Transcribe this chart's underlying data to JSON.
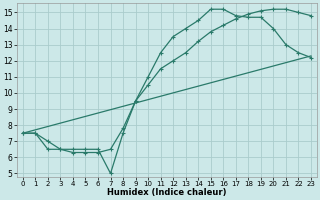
{
  "xlabel": "Humidex (Indice chaleur)",
  "background_color": "#cce8e8",
  "grid_color": "#aacccc",
  "line_color": "#2a7a6a",
  "xlim": [
    -0.5,
    23.5
  ],
  "ylim": [
    4.8,
    15.6
  ],
  "xticks": [
    0,
    1,
    2,
    3,
    4,
    5,
    6,
    7,
    8,
    9,
    10,
    11,
    12,
    13,
    14,
    15,
    16,
    17,
    18,
    19,
    20,
    21,
    22,
    23
  ],
  "yticks": [
    5,
    6,
    7,
    8,
    9,
    10,
    11,
    12,
    13,
    14,
    15
  ],
  "line1_x": [
    0,
    1,
    2,
    3,
    4,
    5,
    6,
    7,
    8,
    9,
    10,
    11,
    12,
    13,
    14,
    15,
    16,
    17,
    18,
    19,
    20,
    21,
    22,
    23
  ],
  "line1_y": [
    7.5,
    7.5,
    6.5,
    6.5,
    6.5,
    6.5,
    6.5,
    5.0,
    7.5,
    9.5,
    11.0,
    12.5,
    13.5,
    14.0,
    14.5,
    15.2,
    15.2,
    14.8,
    14.7,
    14.7,
    14.0,
    13.0,
    12.5,
    12.2
  ],
  "line2_x": [
    0,
    1,
    2,
    3,
    4,
    5,
    6,
    7,
    8,
    9,
    10,
    11,
    12,
    13,
    14,
    15,
    16,
    17,
    18,
    19,
    20,
    21,
    22,
    23
  ],
  "line2_y": [
    7.5,
    7.5,
    7.0,
    6.5,
    6.3,
    6.3,
    6.3,
    6.5,
    7.8,
    9.5,
    10.5,
    11.5,
    12.0,
    12.5,
    13.2,
    13.8,
    14.2,
    14.6,
    14.9,
    15.1,
    15.2,
    15.2,
    15.0,
    14.8
  ],
  "line3_x": [
    0,
    23
  ],
  "line3_y": [
    7.5,
    12.3
  ]
}
